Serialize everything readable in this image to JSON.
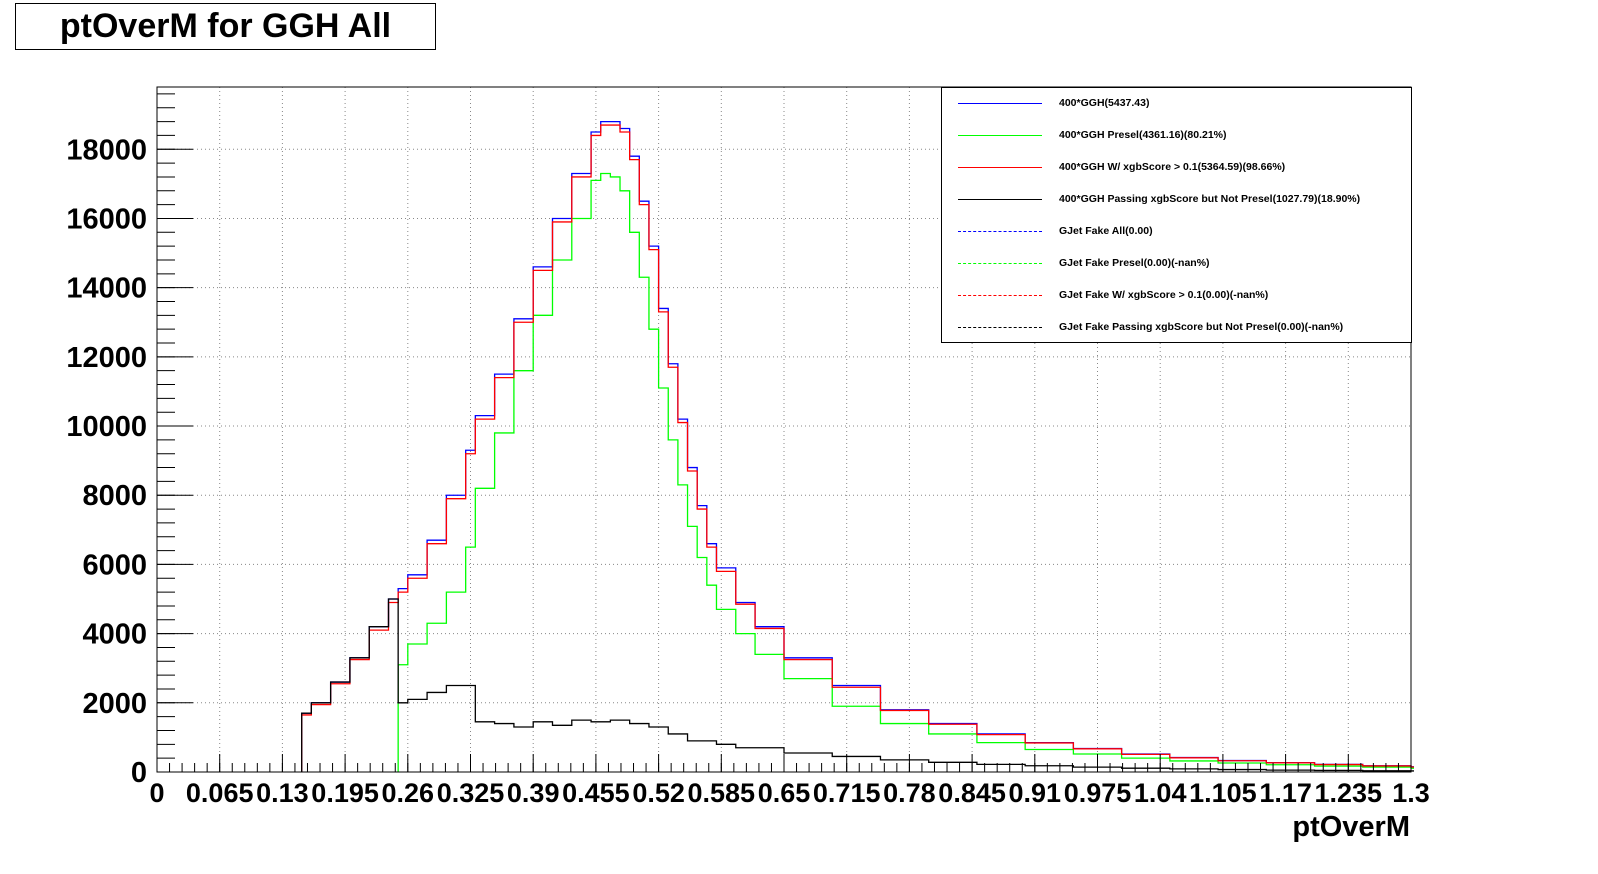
{
  "title": "ptOverM for GGH All",
  "chart_data": {
    "type": "line",
    "xlabel": "ptOverM",
    "ylabel": "",
    "xlim": [
      0,
      1.3
    ],
    "ylim": [
      0,
      19800
    ],
    "x_tick_labels": [
      "0",
      "0.065",
      "0.13",
      "0.195",
      "0.26",
      "0.325",
      "0.39",
      "0.455",
      "0.52",
      "0.585",
      "0.65",
      "0.715",
      "0.78",
      "0.845",
      "0.91",
      "0.975",
      "1.04",
      "1.105",
      "1.17",
      "1.235",
      "1.3"
    ],
    "x_tick_values": [
      0,
      0.065,
      0.13,
      0.195,
      0.26,
      0.325,
      0.39,
      0.455,
      0.52,
      0.585,
      0.65,
      0.715,
      0.78,
      0.845,
      0.91,
      0.975,
      1.04,
      1.105,
      1.17,
      1.235,
      1.3
    ],
    "y_tick_labels": [
      "0",
      "2000",
      "4000",
      "6000",
      "8000",
      "10000",
      "12000",
      "14000",
      "16000",
      "18000"
    ],
    "y_tick_values": [
      0,
      2000,
      4000,
      6000,
      8000,
      10000,
      12000,
      14000,
      16000,
      18000
    ],
    "grid": true,
    "legend_position": "top-right",
    "series": [
      {
        "name": "400*GGH(5437.43)",
        "color": "#0000ff",
        "style": "solid",
        "x": [
          0.15,
          0.16,
          0.18,
          0.2,
          0.22,
          0.24,
          0.25,
          0.26,
          0.28,
          0.3,
          0.32,
          0.33,
          0.35,
          0.37,
          0.39,
          0.41,
          0.43,
          0.45,
          0.46,
          0.47,
          0.48,
          0.49,
          0.5,
          0.51,
          0.52,
          0.53,
          0.54,
          0.55,
          0.56,
          0.57,
          0.58,
          0.6,
          0.62,
          0.65,
          0.7,
          0.75,
          0.8,
          0.85,
          0.9,
          0.95,
          1.0,
          1.05,
          1.1,
          1.15,
          1.2,
          1.25,
          1.3
        ],
        "y": [
          1700,
          2000,
          2600,
          3300,
          4200,
          5000,
          5300,
          5700,
          6700,
          8000,
          9300,
          10300,
          11500,
          13100,
          14600,
          16000,
          17300,
          18500,
          18800,
          18800,
          18600,
          17800,
          16500,
          15200,
          13400,
          11800,
          10200,
          8800,
          7700,
          6600,
          5900,
          4900,
          4200,
          3300,
          2500,
          1800,
          1400,
          1100,
          850,
          680,
          520,
          420,
          330,
          270,
          220,
          180,
          150
        ]
      },
      {
        "name": "400*GGH Presel(4361.16)(80.21%)",
        "color": "#00ff00",
        "style": "solid",
        "x": [
          0.25,
          0.26,
          0.28,
          0.3,
          0.32,
          0.33,
          0.35,
          0.37,
          0.39,
          0.41,
          0.43,
          0.45,
          0.46,
          0.47,
          0.48,
          0.49,
          0.5,
          0.51,
          0.52,
          0.53,
          0.54,
          0.55,
          0.56,
          0.57,
          0.58,
          0.6,
          0.62,
          0.65,
          0.7,
          0.75,
          0.8,
          0.85,
          0.9,
          0.95,
          1.0,
          1.05,
          1.1,
          1.15,
          1.2,
          1.25,
          1.3
        ],
        "y": [
          3100,
          3700,
          4300,
          5200,
          6500,
          8200,
          9800,
          11600,
          13200,
          14800,
          16000,
          17100,
          17300,
          17200,
          16800,
          15600,
          14300,
          12800,
          11100,
          9600,
          8300,
          7100,
          6200,
          5400,
          4700,
          4000,
          3400,
          2700,
          1900,
          1400,
          1100,
          850,
          650,
          520,
          400,
          320,
          260,
          210,
          170,
          140,
          110
        ]
      },
      {
        "name": "400*GGH W/ xgbScore > 0.1(5364.59)(98.66%)",
        "color": "#ff0000",
        "style": "solid",
        "x": [
          0.15,
          0.16,
          0.18,
          0.2,
          0.22,
          0.24,
          0.25,
          0.26,
          0.28,
          0.3,
          0.32,
          0.33,
          0.35,
          0.37,
          0.39,
          0.41,
          0.43,
          0.45,
          0.46,
          0.47,
          0.48,
          0.49,
          0.5,
          0.51,
          0.52,
          0.53,
          0.54,
          0.55,
          0.56,
          0.57,
          0.58,
          0.6,
          0.62,
          0.65,
          0.7,
          0.75,
          0.8,
          0.85,
          0.9,
          0.95,
          1.0,
          1.05,
          1.1,
          1.15,
          1.2,
          1.25,
          1.3
        ],
        "y": [
          1650,
          1950,
          2550,
          3250,
          4100,
          4900,
          5200,
          5600,
          6600,
          7900,
          9200,
          10200,
          11400,
          13000,
          14500,
          15900,
          17200,
          18400,
          18700,
          18700,
          18500,
          17700,
          16400,
          15100,
          13300,
          11700,
          10100,
          8700,
          7600,
          6500,
          5800,
          4850,
          4150,
          3250,
          2450,
          1780,
          1380,
          1080,
          840,
          670,
          510,
          410,
          325,
          265,
          215,
          175,
          145
        ]
      },
      {
        "name": "400*GGH Passing xgbScore but Not Presel(1027.79)(18.90%)",
        "color": "#000000",
        "style": "solid",
        "x": [
          0.15,
          0.16,
          0.18,
          0.2,
          0.22,
          0.24,
          0.25,
          0.26,
          0.28,
          0.3,
          0.32,
          0.33,
          0.35,
          0.37,
          0.39,
          0.41,
          0.43,
          0.45,
          0.47,
          0.49,
          0.51,
          0.53,
          0.55,
          0.58,
          0.6,
          0.65,
          0.7,
          0.75,
          0.8,
          0.85,
          0.9,
          0.95,
          1.0,
          1.05,
          1.1,
          1.15,
          1.2,
          1.25,
          1.3
        ],
        "y": [
          1700,
          2000,
          2600,
          3300,
          4200,
          5000,
          2000,
          2100,
          2300,
          2500,
          2500,
          1450,
          1400,
          1300,
          1450,
          1350,
          1500,
          1450,
          1500,
          1400,
          1300,
          1100,
          900,
          800,
          700,
          550,
          450,
          350,
          280,
          220,
          180,
          140,
          110,
          90,
          70,
          55,
          45,
          35,
          30
        ]
      },
      {
        "name": "GJet Fake All(0.00)",
        "color": "#0000ff",
        "style": "dashed",
        "x": [],
        "y": []
      },
      {
        "name": "GJet Fake Presel(0.00)(-nan%)",
        "color": "#00ff00",
        "style": "dashed",
        "x": [],
        "y": []
      },
      {
        "name": "GJet Fake W/ xgbScore > 0.1(0.00)(-nan%)",
        "color": "#ff0000",
        "style": "dashed",
        "x": [],
        "y": []
      },
      {
        "name": "GJet Fake Passing xgbScore but Not Presel(0.00)(-nan%)",
        "color": "#000000",
        "style": "dashed",
        "x": [],
        "y": []
      }
    ]
  }
}
